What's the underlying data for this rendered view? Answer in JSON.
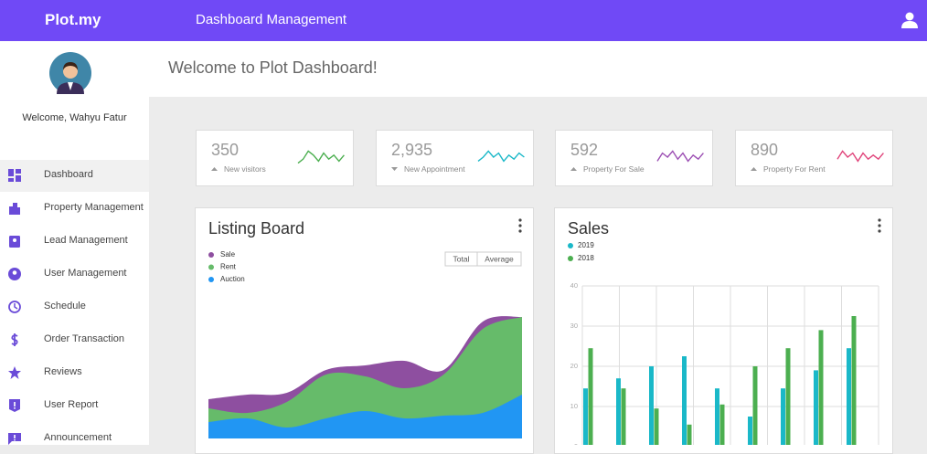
{
  "header": {
    "brand": "Plot.my",
    "title": "Dashboard Management"
  },
  "sidebar": {
    "welcome": "Welcome, Wahyu Fatur",
    "menu": [
      "Dashboard",
      "Property Management",
      "Lead Management",
      "User Management",
      "Schedule",
      "Order Transaction",
      "Reviews",
      "User Report",
      "Announcement"
    ]
  },
  "page_title": "Welcome to Plot Dashboard!",
  "stats": [
    {
      "value": "350",
      "label": "New visitors",
      "trend": "up",
      "color": "#4caf50",
      "sparkline": [
        2,
        4,
        8,
        6,
        3,
        7,
        4,
        6,
        3,
        6
      ]
    },
    {
      "value": "2,935",
      "label": "New Appointment",
      "trend": "down",
      "color": "#1ab8c8",
      "sparkline": [
        3,
        5,
        8,
        5,
        7,
        3,
        6,
        4,
        7,
        5
      ]
    },
    {
      "value": "592",
      "label": "Property For Sale",
      "trend": "up",
      "color": "#9c4fb3",
      "sparkline": [
        3,
        7,
        5,
        8,
        4,
        7,
        3,
        6,
        4,
        7
      ]
    },
    {
      "value": "890",
      "label": "Property For Rent",
      "trend": "up",
      "color": "#e0457b",
      "sparkline": [
        4,
        8,
        5,
        7,
        3,
        7,
        4,
        6,
        4,
        7
      ]
    }
  ],
  "listing_chart": {
    "type": "area",
    "title": "Listing Board",
    "buttons": [
      "Total",
      "Average"
    ],
    "series": [
      {
        "name": "Sale",
        "color": "#8e4fa0",
        "values": [
          10,
          20,
          10,
          5,
          12,
          30,
          5,
          8,
          0
        ]
      },
      {
        "name": "Rent",
        "color": "#66bb6a",
        "values": [
          15,
          6,
          28,
          48,
          38,
          33,
          45,
          92,
          85
        ]
      },
      {
        "name": "Auction",
        "color": "#2196f3",
        "values": [
          18,
          22,
          12,
          22,
          30,
          22,
          25,
          28,
          48
        ]
      }
    ]
  },
  "sales_chart": {
    "type": "bar",
    "title": "Sales",
    "categories": [
      null,
      null,
      null,
      null,
      null,
      null,
      null,
      null,
      null
    ],
    "series": [
      {
        "name": "2019",
        "color": "#1ab8c8",
        "values": [
          14.5,
          17,
          20,
          22.5,
          14.5,
          7.5,
          14.5,
          19,
          24.5
        ]
      },
      {
        "name": "2018",
        "color": "#4caf50",
        "values": [
          24.5,
          14.5,
          9.5,
          5.5,
          10.5,
          20,
          24.5,
          29,
          32.5
        ]
      }
    ],
    "ylim": [
      0,
      40
    ],
    "yticks": [
      0,
      10,
      20,
      30,
      40
    ],
    "grid": true
  }
}
